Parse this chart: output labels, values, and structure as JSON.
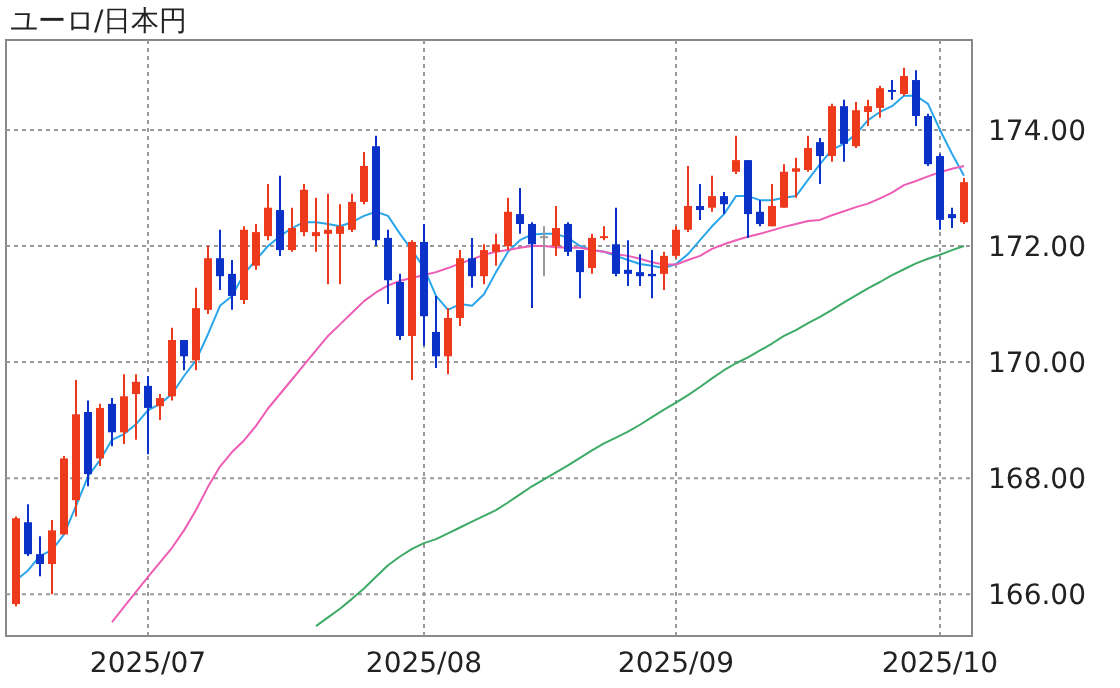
{
  "chart_data": {
    "type": "candlestick",
    "title": "ユーロ/日本円",
    "categories": [
      null,
      null,
      null,
      null,
      null,
      null,
      null,
      null,
      null,
      null,
      null,
      "2025/07",
      null,
      null,
      null,
      null,
      null,
      null,
      null,
      null,
      null,
      null,
      null,
      null,
      null,
      null,
      null,
      null,
      null,
      null,
      null,
      null,
      null,
      null,
      "2025/08",
      null,
      null,
      null,
      null,
      null,
      null,
      null,
      null,
      null,
      null,
      null,
      null,
      null,
      null,
      null,
      null,
      null,
      null,
      null,
      null,
      "2025/09",
      null,
      null,
      null,
      null,
      null,
      null,
      null,
      null,
      null,
      null,
      null,
      null,
      null,
      null,
      null,
      null,
      null,
      null,
      null,
      null,
      null,
      "2025/10",
      null,
      null
    ],
    "ylim": [
      165.28,
      175.55
    ],
    "yticks": [
      {
        "value": 166,
        "label": "166.00"
      },
      {
        "value": 168,
        "label": "168.00"
      },
      {
        "value": 170,
        "label": "170.00"
      },
      {
        "value": 172,
        "label": "172.00"
      },
      {
        "value": 174,
        "label": "174.00"
      }
    ],
    "grid": true,
    "series": [
      {
        "ohlc": [
          [
            165.83,
            167.34,
            165.79,
            167.31
          ],
          [
            167.24,
            167.55,
            166.66,
            166.69
          ],
          [
            166.69,
            167.0,
            166.31,
            166.52
          ],
          [
            166.52,
            167.28,
            166.0,
            167.1
          ],
          [
            167.03,
            168.38,
            167.03,
            168.34
          ],
          [
            167.62,
            169.69,
            167.34,
            169.1
          ],
          [
            169.14,
            169.34,
            167.86,
            168.07
          ],
          [
            168.34,
            169.28,
            168.21,
            169.21
          ],
          [
            169.28,
            169.38,
            168.55,
            168.79
          ],
          [
            168.79,
            169.79,
            168.59,
            169.41
          ],
          [
            169.45,
            169.79,
            168.66,
            169.66
          ],
          [
            169.59,
            169.76,
            168.41,
            169.21
          ],
          [
            169.24,
            169.45,
            169.0,
            169.38
          ],
          [
            169.41,
            170.59,
            169.34,
            170.38
          ],
          [
            170.38,
            170.38,
            169.86,
            170.1
          ],
          [
            170.03,
            171.28,
            169.86,
            170.93
          ],
          [
            170.9,
            172.0,
            170.83,
            171.79
          ],
          [
            171.79,
            172.28,
            171.24,
            171.48
          ],
          [
            171.52,
            171.76,
            170.9,
            171.14
          ],
          [
            171.07,
            172.34,
            171.0,
            172.28
          ],
          [
            171.66,
            172.38,
            171.59,
            172.24
          ],
          [
            172.17,
            173.07,
            172.1,
            172.66
          ],
          [
            172.62,
            173.21,
            171.83,
            171.93
          ],
          [
            171.93,
            172.66,
            171.9,
            172.31
          ],
          [
            172.24,
            173.07,
            172.17,
            172.97
          ],
          [
            172.17,
            172.83,
            171.9,
            172.24
          ],
          [
            172.21,
            172.9,
            171.34,
            172.28
          ],
          [
            172.21,
            172.72,
            171.34,
            172.34
          ],
          [
            172.28,
            172.9,
            172.24,
            172.76
          ],
          [
            172.76,
            173.62,
            172.72,
            173.38
          ],
          [
            173.72,
            173.9,
            172.0,
            172.1
          ],
          [
            172.14,
            172.28,
            171.0,
            171.41
          ],
          [
            171.38,
            171.52,
            170.38,
            170.45
          ],
          [
            170.45,
            172.1,
            169.69,
            172.07
          ],
          [
            172.07,
            172.38,
            170.28,
            170.79
          ],
          [
            170.52,
            171.14,
            169.9,
            170.1
          ],
          [
            170.1,
            170.93,
            169.79,
            170.76
          ],
          [
            170.76,
            171.93,
            170.62,
            171.79
          ],
          [
            171.79,
            172.14,
            171.28,
            171.48
          ],
          [
            171.48,
            172.03,
            171.34,
            171.93
          ],
          [
            171.9,
            172.21,
            171.66,
            172.03
          ],
          [
            172.0,
            172.83,
            171.93,
            172.59
          ],
          [
            172.55,
            173.0,
            172.21,
            172.38
          ],
          [
            172.38,
            172.41,
            170.93,
            172.03
          ],
          [
            172.17,
            172.34,
            171.48,
            172.17
          ],
          [
            172.0,
            172.69,
            171.83,
            172.31
          ],
          [
            172.38,
            172.41,
            171.83,
            171.9
          ],
          [
            171.93,
            171.93,
            171.1,
            171.55
          ],
          [
            171.62,
            172.21,
            171.52,
            172.14
          ],
          [
            172.14,
            172.34,
            172.1,
            172.17
          ],
          [
            172.03,
            172.66,
            171.48,
            171.52
          ],
          [
            171.59,
            172.1,
            171.31,
            171.52
          ],
          [
            171.55,
            171.86,
            171.31,
            171.48
          ],
          [
            171.52,
            171.93,
            171.1,
            171.48
          ],
          [
            171.52,
            171.9,
            171.24,
            171.83
          ],
          [
            171.83,
            172.34,
            171.79,
            172.28
          ],
          [
            172.28,
            173.38,
            172.24,
            172.69
          ],
          [
            172.69,
            173.07,
            172.45,
            172.62
          ],
          [
            172.66,
            173.21,
            172.59,
            172.86
          ],
          [
            172.86,
            172.93,
            172.55,
            172.72
          ],
          [
            173.28,
            173.9,
            173.24,
            173.48
          ],
          [
            173.48,
            173.48,
            172.14,
            172.55
          ],
          [
            172.59,
            172.79,
            172.34,
            172.38
          ],
          [
            172.34,
            173.07,
            172.34,
            172.69
          ],
          [
            172.66,
            173.41,
            172.66,
            173.28
          ],
          [
            173.28,
            173.52,
            172.83,
            173.34
          ],
          [
            173.31,
            173.9,
            173.28,
            173.69
          ],
          [
            173.79,
            173.86,
            173.07,
            173.55
          ],
          [
            173.55,
            174.45,
            173.45,
            174.41
          ],
          [
            174.41,
            174.52,
            173.45,
            173.76
          ],
          [
            173.72,
            174.48,
            173.69,
            174.34
          ],
          [
            174.31,
            174.52,
            174.07,
            174.41
          ],
          [
            174.38,
            174.76,
            174.21,
            174.72
          ],
          [
            174.69,
            174.86,
            174.52,
            174.66
          ],
          [
            174.62,
            175.07,
            174.59,
            174.93
          ],
          [
            174.86,
            175.03,
            174.07,
            174.24
          ],
          [
            174.24,
            174.28,
            173.38,
            173.41
          ],
          [
            173.55,
            173.59,
            172.28,
            172.45
          ],
          [
            172.55,
            172.66,
            172.31,
            172.48
          ],
          [
            172.41,
            173.17,
            172.38,
            173.1
          ]
        ],
        "colors": [
          "#ee3a1c",
          "#0a32c8",
          "#0a32c8",
          "#ee3a1c",
          "#ee3a1c",
          "#ee3a1c",
          "#0a32c8",
          "#ee3a1c",
          "#0a32c8",
          "#ee3a1c",
          "#ee3a1c",
          "#0a32c8",
          "#ee3a1c",
          "#ee3a1c",
          "#0a32c8",
          "#ee3a1c",
          "#ee3a1c",
          "#0a32c8",
          "#0a32c8",
          "#ee3a1c",
          "#ee3a1c",
          "#ee3a1c",
          "#0a32c8",
          "#ee3a1c",
          "#ee3a1c",
          "#ee3a1c",
          "#ee3a1c",
          "#ee3a1c",
          "#ee3a1c",
          "#ee3a1c",
          "#0a32c8",
          "#0a32c8",
          "#0a32c8",
          "#ee3a1c",
          "#0a32c8",
          "#0a32c8",
          "#ee3a1c",
          "#ee3a1c",
          "#0a32c8",
          "#ee3a1c",
          "#ee3a1c",
          "#ee3a1c",
          "#0a32c8",
          "#0a32c8",
          "#999999",
          "#ee3a1c",
          "#0a32c8",
          "#0a32c8",
          "#ee3a1c",
          "#ee3a1c",
          "#0a32c8",
          "#0a32c8",
          "#0a32c8",
          "#0a32c8",
          "#ee3a1c",
          "#ee3a1c",
          "#ee3a1c",
          "#0a32c8",
          "#ee3a1c",
          "#0a32c8",
          "#ee3a1c",
          "#0a32c8",
          "#0a32c8",
          "#ee3a1c",
          "#ee3a1c",
          "#ee3a1c",
          "#ee3a1c",
          "#0a32c8",
          "#ee3a1c",
          "#0a32c8",
          "#ee3a1c",
          "#ee3a1c",
          "#ee3a1c",
          "#0a32c8",
          "#ee3a1c",
          "#0a32c8",
          "#0a32c8",
          "#0a32c8",
          "#0a32c8",
          "#ee3a1c"
        ]
      },
      {
        "type": "line",
        "color": "#2aa5ea",
        "values": [
          166.24,
          166.41,
          166.66,
          166.76,
          167.03,
          167.52,
          168.03,
          168.31,
          168.66,
          168.76,
          168.93,
          169.17,
          169.28,
          169.45,
          169.76,
          170.03,
          170.48,
          170.97,
          171.14,
          171.52,
          171.76,
          172.0,
          172.17,
          172.31,
          172.41,
          172.41,
          172.38,
          172.34,
          172.41,
          172.52,
          172.59,
          172.52,
          172.21,
          171.93,
          171.62,
          171.14,
          170.9,
          171.0,
          170.97,
          171.17,
          171.55,
          171.9,
          172.1,
          172.2,
          172.21,
          172.21,
          172.14,
          172.0,
          171.93,
          171.9,
          171.83,
          171.76,
          171.69,
          171.66,
          171.62,
          171.69,
          171.86,
          172.1,
          172.34,
          172.55,
          172.86,
          172.86,
          172.79,
          172.79,
          172.83,
          172.86,
          173.14,
          173.41,
          173.66,
          173.76,
          173.93,
          174.17,
          174.31,
          174.41,
          174.59,
          174.59,
          174.45,
          174.0,
          173.59,
          173.21
        ]
      },
      {
        "type": "line",
        "color": "#ee5db5",
        "values": [
          null,
          null,
          null,
          null,
          null,
          null,
          null,
          null,
          165.52,
          165.78,
          166.04,
          166.3,
          166.55,
          166.8,
          167.1,
          167.45,
          167.85,
          168.2,
          168.45,
          168.65,
          168.9,
          169.2,
          169.45,
          169.7,
          169.95,
          170.2,
          170.45,
          170.65,
          170.85,
          171.05,
          171.2,
          171.32,
          171.4,
          171.45,
          171.5,
          171.55,
          171.62,
          171.7,
          171.77,
          171.85,
          171.9,
          171.93,
          171.97,
          172.0,
          172.0,
          171.98,
          171.97,
          171.97,
          171.93,
          171.9,
          171.86,
          171.83,
          171.78,
          171.72,
          171.68,
          171.68,
          171.76,
          171.83,
          171.95,
          172.03,
          172.1,
          172.16,
          172.21,
          172.27,
          172.33,
          172.38,
          172.43,
          172.45,
          172.53,
          172.6,
          172.67,
          172.73,
          172.82,
          172.92,
          173.05,
          173.12,
          173.2,
          173.27,
          173.33,
          173.38
        ]
      },
      {
        "type": "line",
        "color": "#3daa66",
        "values": [
          null,
          null,
          null,
          null,
          null,
          null,
          null,
          null,
          null,
          null,
          null,
          null,
          null,
          null,
          null,
          null,
          null,
          null,
          null,
          null,
          null,
          null,
          null,
          null,
          null,
          165.45,
          165.6,
          165.75,
          165.92,
          166.1,
          166.3,
          166.5,
          166.65,
          166.78,
          166.88,
          166.95,
          167.05,
          167.15,
          167.25,
          167.35,
          167.45,
          167.58,
          167.72,
          167.86,
          167.98,
          168.1,
          168.22,
          168.35,
          168.48,
          168.6,
          168.7,
          168.8,
          168.92,
          169.05,
          169.18,
          169.3,
          169.43,
          169.57,
          169.72,
          169.86,
          169.98,
          170.08,
          170.2,
          170.32,
          170.45,
          170.55,
          170.67,
          170.78,
          170.9,
          171.03,
          171.15,
          171.27,
          171.38,
          171.5,
          171.6,
          171.7,
          171.78,
          171.85,
          171.93,
          172.0
        ]
      }
    ]
  }
}
